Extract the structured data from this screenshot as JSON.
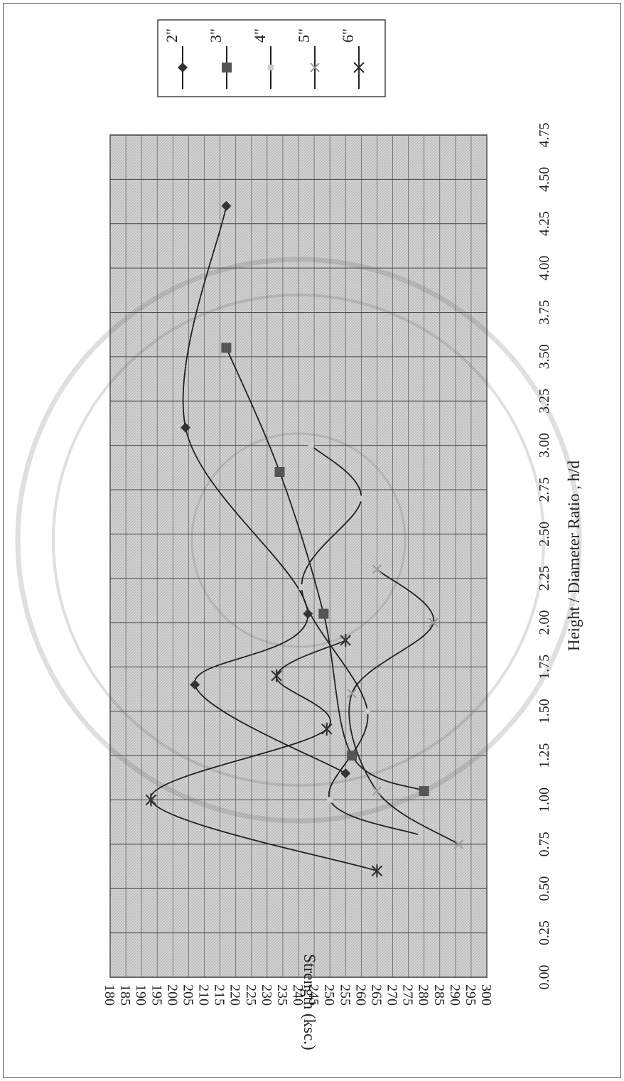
{
  "chart_data": {
    "type": "line",
    "title": "",
    "xlabel": "Height / Diameter Ratio , h/d",
    "ylabel": "Strength (ksc.)",
    "xlim": [
      0,
      4.75
    ],
    "ylim": [
      180,
      300
    ],
    "x_ticks": [
      "0.00",
      "0.25",
      "0.50",
      "0.75",
      "1.00",
      "1.25",
      "1.50",
      "1.75",
      "2.00",
      "2.25",
      "2.50",
      "2.75",
      "3.00",
      "3.25",
      "3.50",
      "3.75",
      "4.00",
      "4.25",
      "4.50",
      "4.75"
    ],
    "y_ticks": [
      "300",
      "295",
      "290",
      "285",
      "280",
      "275",
      "270",
      "265",
      "260",
      "255",
      "250",
      "245",
      "240",
      "235",
      "230",
      "225",
      "220",
      "215",
      "210",
      "205",
      "200",
      "195",
      "190",
      "185",
      "180"
    ],
    "grid": true,
    "legend_position": "top-right",
    "orientation": "rotated-90-clockwise",
    "series": [
      {
        "name": "2\"",
        "marker": "diamond",
        "color": "#333333",
        "x": [
          1.15,
          1.65,
          2.05,
          3.1,
          4.35
        ],
        "y": [
          255,
          207,
          243,
          204,
          217
        ]
      },
      {
        "name": "3\"",
        "marker": "square",
        "color": "#555555",
        "x": [
          1.05,
          1.25,
          2.05,
          2.85,
          3.55
        ],
        "y": [
          280,
          257,
          248,
          234,
          217
        ]
      },
      {
        "name": "4\"",
        "marker": "none",
        "color": "#cccccc",
        "x": [
          0.8,
          1.0,
          1.5,
          2.2,
          2.7,
          3.0
        ],
        "y": [
          279,
          250,
          262,
          241,
          260,
          244
        ]
      },
      {
        "name": "5\"",
        "marker": "x",
        "color": "#999999",
        "x": [
          0.75,
          1.05,
          1.6,
          2.0,
          2.3
        ],
        "y": [
          291,
          265,
          257,
          283,
          265
        ]
      },
      {
        "name": "6\"",
        "marker": "asterisk",
        "color": "#333333",
        "x": [
          0.6,
          1.0,
          1.4,
          1.7,
          1.9
        ],
        "y": [
          265,
          193,
          249,
          233,
          255
        ]
      }
    ]
  }
}
